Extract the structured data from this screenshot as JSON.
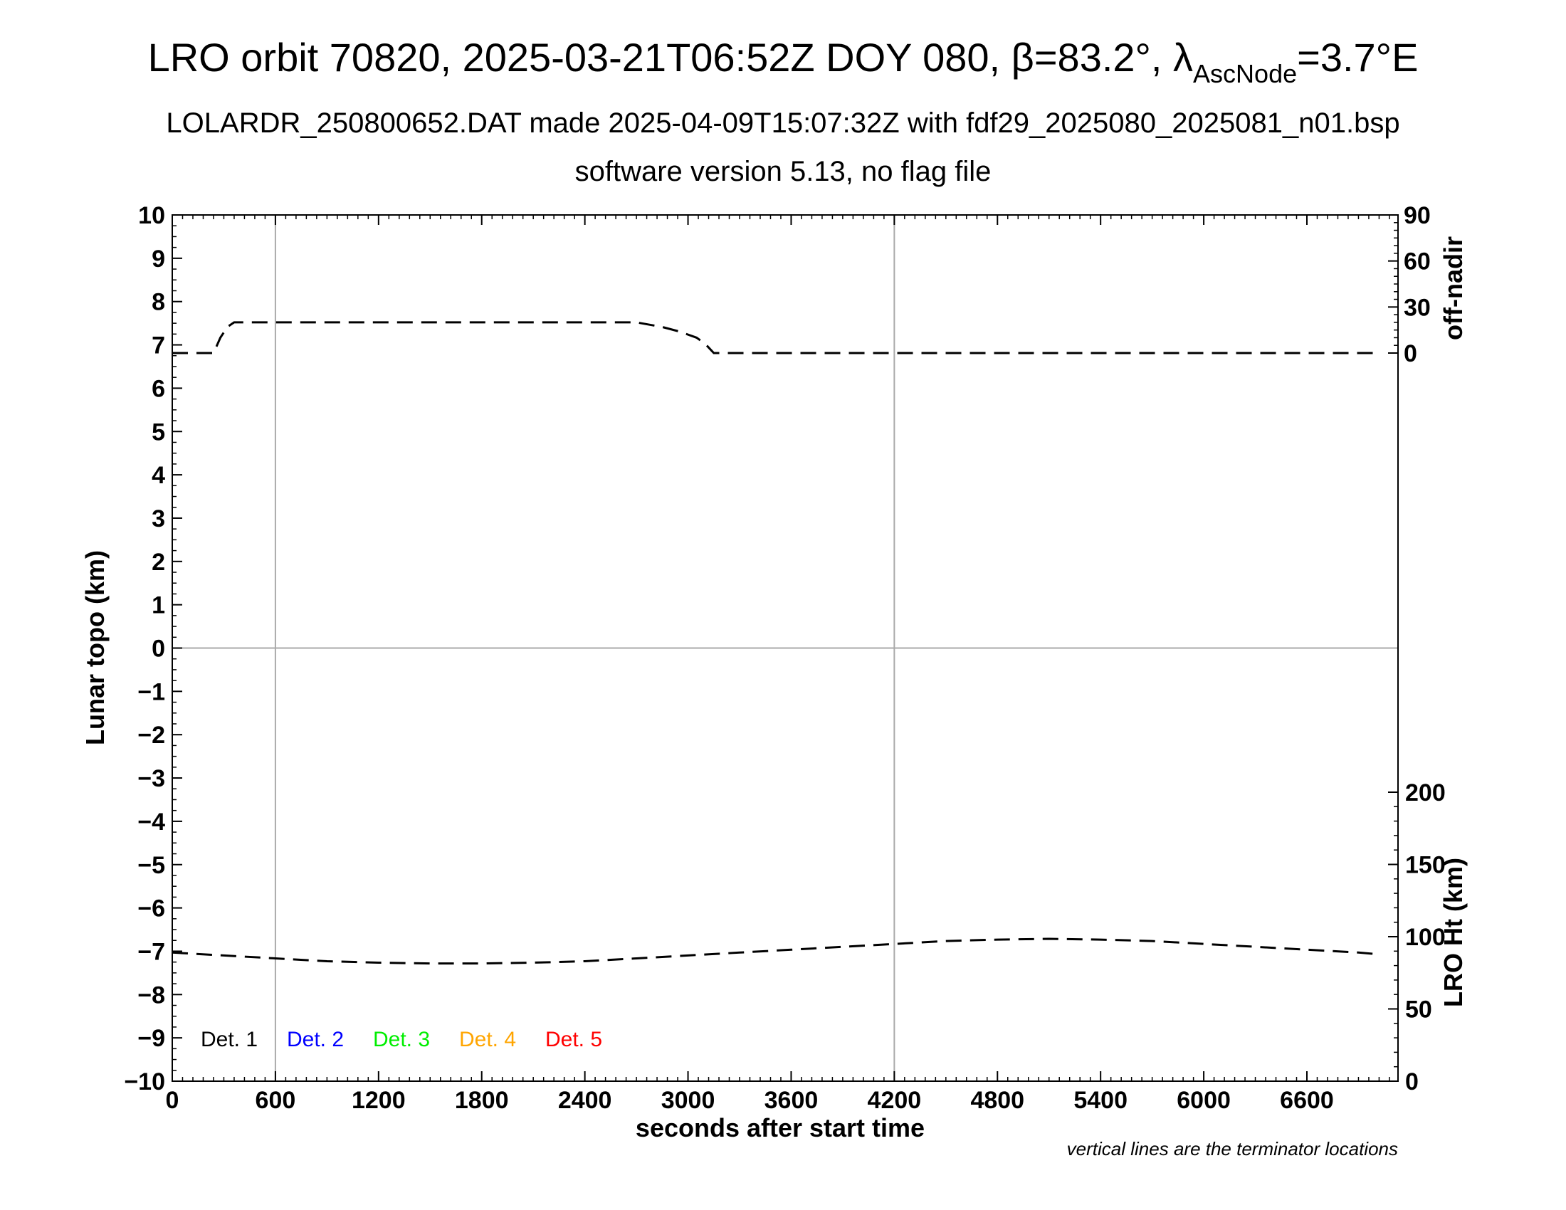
{
  "colors": {
    "axis": "#000000",
    "grid": "#aaaaaa",
    "series": "#000000",
    "det1": "#000000",
    "det2": "#0000ff",
    "det3": "#00ee00",
    "det4": "#ffa500",
    "det5": "#ff0000"
  },
  "chart_data": {
    "type": "line",
    "title": {
      "main": "LRO orbit 70820, 2025-03-21T06:52Z DOY 080, β=83.2°, λ",
      "sub": "AscNode",
      "tail": "=3.7°E"
    },
    "subtitle": "LOLARDR_250800652.DAT made 2025-04-09T15:07:32Z with fdf29_2025080_2025081_n01.bsp",
    "subtitle2": "software version 5.13, no flag file",
    "xlabel": "seconds after start time",
    "ylabel": "Lunar topo (km)",
    "y2label_top": "off-nadir",
    "y2label_bottom": "LRO Ht (km)",
    "footnote": "vertical lines are the terminator locations",
    "xlim": [
      0,
      7130
    ],
    "ylim": [
      -10,
      10
    ],
    "x_ticks": [
      "0",
      "600",
      "1200",
      "1800",
      "2400",
      "3000",
      "3600",
      "4200",
      "4800",
      "5400",
      "6000",
      "6600"
    ],
    "y_ticks": [
      "10",
      "9",
      "8",
      "7",
      "6",
      "5",
      "4",
      "3",
      "2",
      "1",
      "0",
      "−1",
      "−2",
      "−3",
      "−4",
      "−5",
      "−6",
      "−7",
      "−8",
      "−9",
      "−10"
    ],
    "offnadir_ticks": [
      "90",
      "60",
      "30",
      "0"
    ],
    "height_ticks": [
      "200",
      "150",
      "100",
      "50",
      "0"
    ],
    "terminator_lines_x": [
      600,
      4200
    ],
    "legend": [
      "Det. 1",
      "Det. 2",
      "Det. 3",
      "Det. 4",
      "Det. 5"
    ],
    "series": [
      {
        "axis": "off-nadir",
        "style": "dashed",
        "x": [
          0,
          240,
          280,
          320,
          360,
          700,
          1500,
          2500,
          2700,
          2850,
          2950,
          3050,
          3100,
          3150,
          4000,
          5000,
          6000,
          7000
        ],
        "y": [
          0,
          0,
          10,
          17,
          20,
          20,
          20,
          20,
          20,
          17,
          14,
          10,
          6,
          0,
          0,
          0,
          0,
          0
        ]
      },
      {
        "axis": "LRO Ht (km)",
        "style": "dashed",
        "x": [
          0,
          300,
          600,
          900,
          1200,
          1500,
          1800,
          2100,
          2400,
          2700,
          3000,
          3300,
          3600,
          3900,
          4200,
          4500,
          4800,
          5100,
          5400,
          5700,
          6000,
          6300,
          6600,
          6900,
          7000
        ],
        "y": [
          89,
          87,
          85,
          83,
          82,
          81.5,
          81.5,
          82,
          83,
          85,
          87,
          89,
          91,
          93,
          95,
          97,
          98,
          98.5,
          98,
          97,
          95,
          93,
          91,
          89,
          88
        ]
      }
    ]
  }
}
